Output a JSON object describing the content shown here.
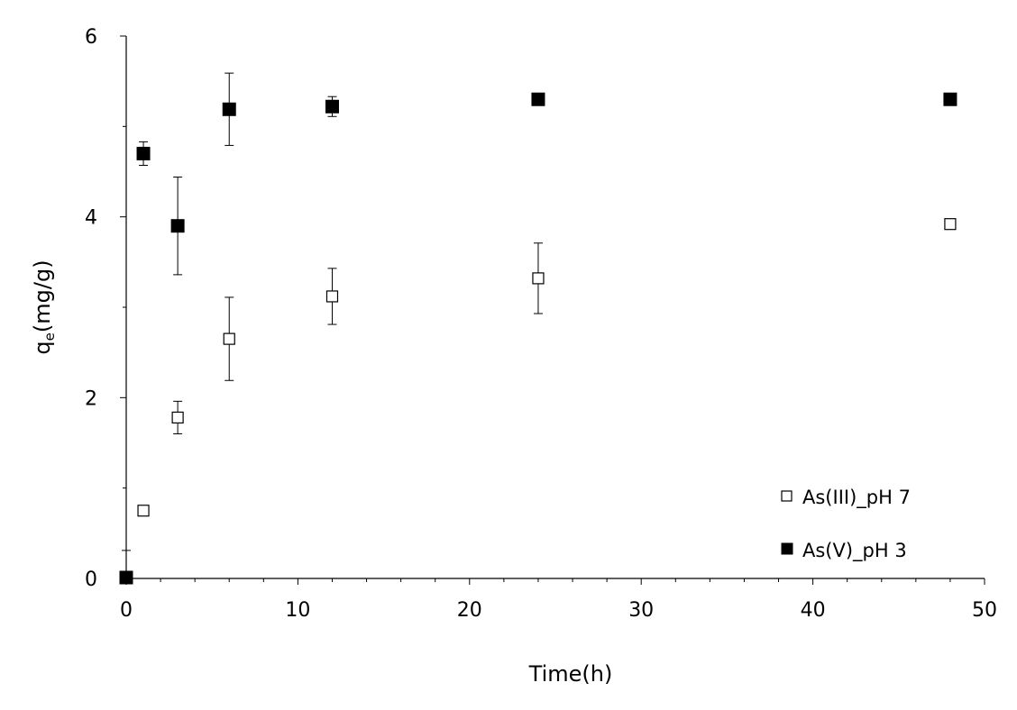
{
  "chart_data": {
    "type": "scatter",
    "xlabel": "Time(h)",
    "ylabel_main": "q",
    "ylabel_sub": "e",
    "ylabel_rest": "(mg/g)",
    "xlim": [
      0,
      50
    ],
    "ylim": [
      0,
      6
    ],
    "xticks": [
      0,
      10,
      20,
      30,
      40,
      50
    ],
    "yticks": [
      0,
      2,
      4,
      6
    ],
    "xtick_labels": [
      "0",
      "10",
      "20",
      "30",
      "40",
      "50"
    ],
    "ytick_labels": [
      "0",
      "2",
      "4",
      "6"
    ],
    "grid": false,
    "legend_position": "bottom-right",
    "series": [
      {
        "name": "As(III)_pH 7",
        "marker": "open-square",
        "color": "#000000",
        "x": [
          1,
          3,
          6,
          12,
          24,
          48
        ],
        "y": [
          0.75,
          1.78,
          2.65,
          3.12,
          3.32,
          3.92
        ],
        "err": [
          0.02,
          0.18,
          0.46,
          0.31,
          0.39,
          0
        ]
      },
      {
        "name": "As(V)_pH 3",
        "marker": "filled-square",
        "color": "#000000",
        "x": [
          0,
          1,
          3,
          6,
          12,
          24,
          48
        ],
        "y": [
          0.01,
          4.7,
          3.9,
          5.19,
          5.22,
          5.3,
          5.3
        ],
        "err": [
          0.3,
          0.13,
          0.54,
          0.4,
          0.11,
          0,
          0
        ]
      }
    ]
  }
}
